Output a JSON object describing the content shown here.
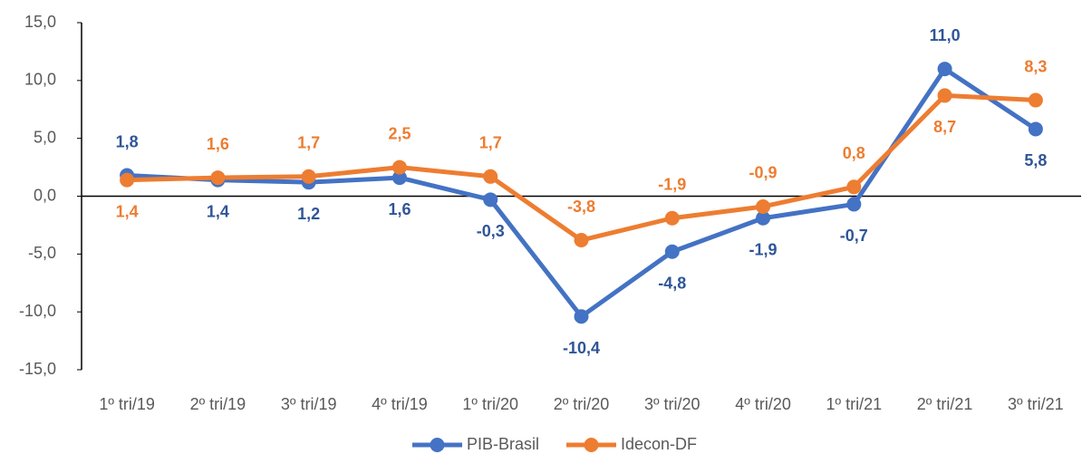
{
  "chart_data": {
    "type": "line",
    "categories": [
      "1º tri/19",
      "2º tri/19",
      "3º tri/19",
      "4º tri/19",
      "1º tri/20",
      "2º tri/20",
      "3º tri/20",
      "4º tri/20",
      "1º tri/21",
      "2º tri/21",
      "3º tri/21"
    ],
    "series": [
      {
        "name": "PIB-Brasil",
        "color": "#4472c4",
        "label_color": "#2f5597",
        "values": [
          1.8,
          1.4,
          1.2,
          1.6,
          -0.3,
          -10.4,
          -4.8,
          -1.9,
          -0.7,
          11.0,
          5.8
        ],
        "value_labels": [
          "1,8",
          "1,4",
          "1,2",
          "1,6",
          "-0,3",
          "-10,4",
          "-4,8",
          "-1,9",
          "-0,7",
          "11,0",
          "5,8"
        ]
      },
      {
        "name": "Idecon-DF",
        "color": "#ed7d31",
        "label_color": "#ed7d31",
        "values": [
          1.4,
          1.6,
          1.7,
          2.5,
          1.7,
          -3.8,
          -1.9,
          -0.9,
          0.8,
          8.7,
          8.3
        ],
        "value_labels": [
          "1,4",
          "1,6",
          "1,7",
          "2,5",
          "1,7",
          "-3,8",
          "-1,9",
          "-0,9",
          "0,8",
          "8,7",
          "8,3"
        ]
      }
    ],
    "ylim": [
      -15,
      15
    ],
    "yticks": [
      {
        "value": -15,
        "label": "-15,0"
      },
      {
        "value": -10,
        "label": "-10,0"
      },
      {
        "value": -5,
        "label": "-5,0"
      },
      {
        "value": 0,
        "label": "0,0"
      },
      {
        "value": 5,
        "label": "5,0"
      },
      {
        "value": 10,
        "label": "10,0"
      },
      {
        "value": 15,
        "label": "15,0"
      }
    ],
    "grid": false,
    "legend": "bottom"
  }
}
